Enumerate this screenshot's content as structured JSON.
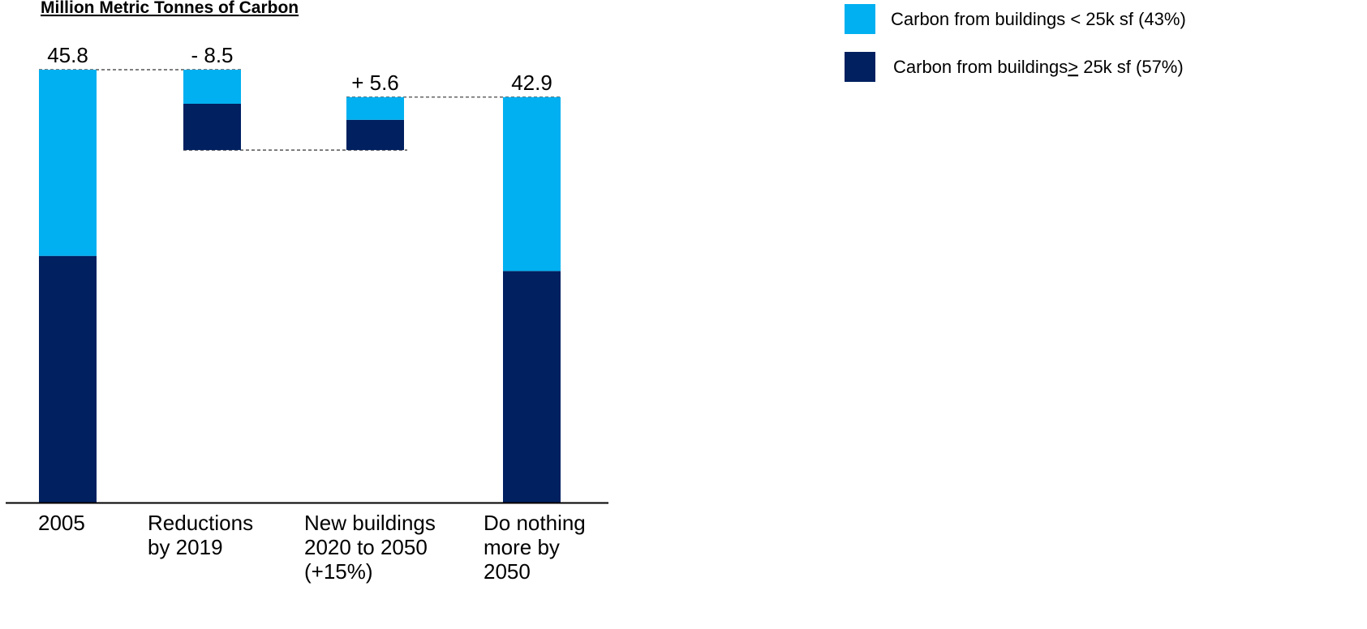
{
  "chart_data": {
    "type": "bar",
    "subtype": "waterfall-stacked",
    "ylabel": "Million Metric Tonnes of Carbon",
    "categories": [
      [
        "2005"
      ],
      [
        "Reductions",
        "by 2019"
      ],
      [
        "New buildings",
        "2020 to 2050",
        "(+15%)"
      ],
      [
        "Do nothing",
        "more by",
        "2050"
      ]
    ],
    "value_labels": [
      "45.8",
      "- 8.5",
      "+ 5.6",
      "42.9"
    ],
    "totals": [
      45.8,
      -8.5,
      5.6,
      42.9
    ],
    "series": [
      {
        "name": "Carbon from buildings < 25k sf  (43%)",
        "color": "#00B0F0",
        "values": [
          19.7,
          3.6,
          2.4,
          18.4
        ]
      },
      {
        "name": "Carbon from buildings≥ 25k sf  (57%)",
        "color": "#002060",
        "values": [
          26.1,
          4.9,
          3.2,
          24.5
        ]
      }
    ],
    "ylim": [
      0,
      45.8
    ],
    "grid": false,
    "legend_position": "top-right"
  }
}
